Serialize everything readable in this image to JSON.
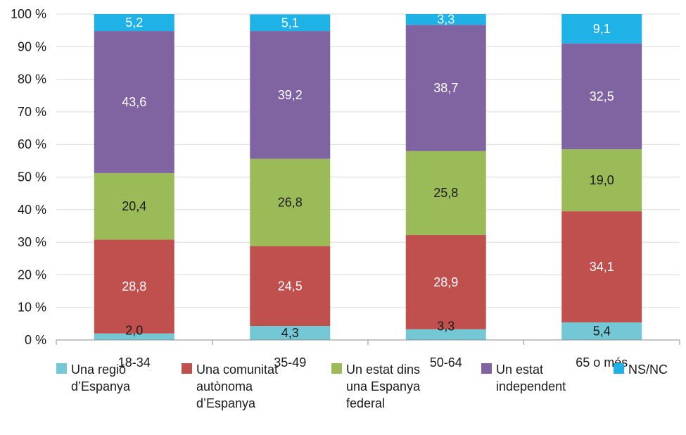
{
  "chart_data": {
    "type": "bar",
    "stacked": true,
    "categories": [
      "18-34",
      "35-49",
      "50-64",
      "65 o més"
    ],
    "series": [
      {
        "name": "Una regió\nd’Espanya",
        "color": "#74c7d4",
        "values": [
          2.0,
          4.3,
          3.3,
          5.4
        ],
        "labels": [
          "2,0",
          "4,3",
          "3,3",
          "5,4"
        ]
      },
      {
        "name": "Una comunitat\nautònoma\nd’Espanya",
        "color": "#c0504d",
        "values": [
          28.8,
          24.5,
          28.9,
          34.1
        ],
        "labels": [
          "28,8",
          "24,5",
          "28,9",
          "34,1"
        ]
      },
      {
        "name": "Un estat dins\nuna Espanya\nfederal",
        "color": "#9bbb59",
        "values": [
          20.4,
          26.8,
          25.8,
          19.0
        ],
        "labels": [
          "20,4",
          "26,8",
          "25,8",
          "19,0"
        ]
      },
      {
        "name": "Un estat\nindependent",
        "color": "#8064a2",
        "values": [
          43.6,
          39.2,
          38.7,
          32.5
        ],
        "labels": [
          "43,6",
          "39,2",
          "38,7",
          "32,5"
        ]
      },
      {
        "name": "NS/NC",
        "color": "#1fb2e6",
        "values": [
          5.2,
          5.1,
          3.3,
          9.1
        ],
        "labels": [
          "5,2",
          "5,1",
          "3,3",
          "9,1"
        ]
      }
    ],
    "ylim": [
      0,
      100
    ],
    "yticks": [
      "0 %",
      "10 %",
      "20 %",
      "30 %",
      "40 %",
      "50 %",
      "60 %",
      "70 %",
      "80 %",
      "90 %",
      "100 %"
    ],
    "grid": true,
    "legend_position": "bottom"
  }
}
